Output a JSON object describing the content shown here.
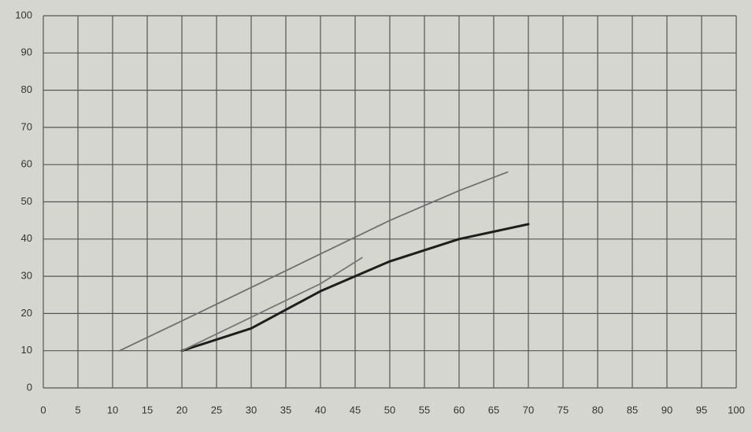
{
  "chart_data": {
    "type": "line",
    "xlim": [
      0,
      100
    ],
    "xticks": [
      0,
      5,
      10,
      15,
      20,
      25,
      30,
      35,
      40,
      45,
      50,
      55,
      60,
      65,
      70,
      75,
      80,
      85,
      90,
      95,
      100
    ],
    "ylim": [
      0,
      100
    ],
    "yticks": [
      0,
      10,
      20,
      30,
      40,
      50,
      60,
      70,
      80,
      90,
      100
    ],
    "grid": true,
    "series": [
      {
        "color": "#6f6f6f",
        "x": [
          11,
          20,
          30,
          40,
          50,
          60,
          67
        ],
        "values": [
          10,
          18,
          27,
          36,
          45,
          53,
          58
        ]
      },
      {
        "color": "#1e1e1e",
        "x": [
          20,
          30,
          40,
          50,
          60,
          70
        ],
        "values": [
          10,
          16,
          26,
          34,
          40,
          44
        ]
      },
      {
        "color": "#777777",
        "x": [
          20,
          30,
          40,
          46
        ],
        "values": [
          10,
          19,
          28,
          35
        ]
      }
    ]
  }
}
